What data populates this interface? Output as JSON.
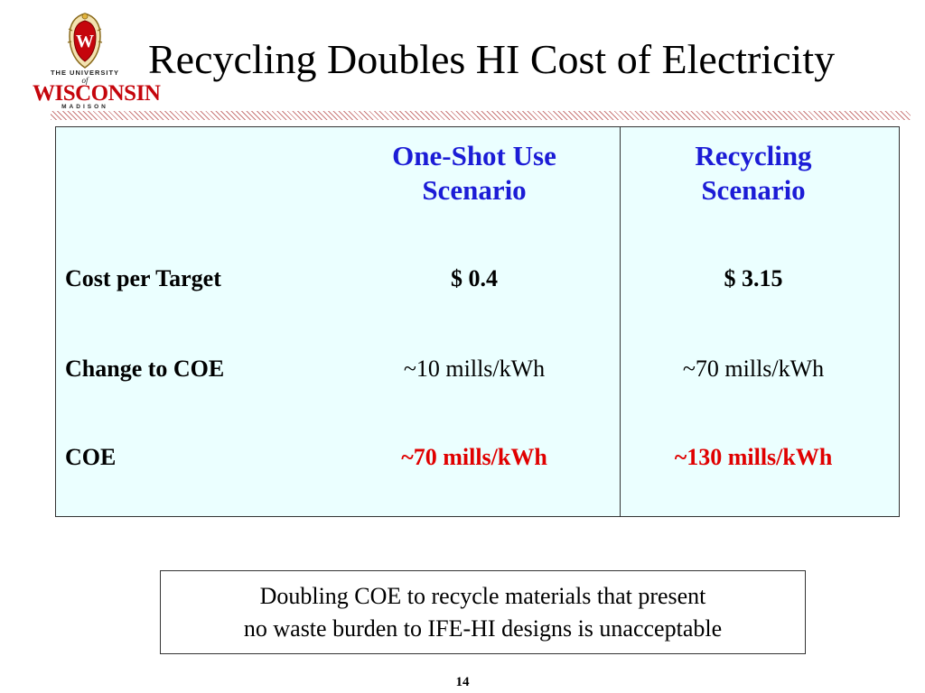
{
  "logo": {
    "line_top": "THE UNIVERSITY",
    "line_of": "of",
    "line_main": "WISCONSIN",
    "line_bottom": "MADISON",
    "crest_letter": "W",
    "crest_color": "#c5050c"
  },
  "title": "Recycling Doubles HI Cost of Electricity",
  "table": {
    "headers": [
      {
        "line1": "One-Shot Use",
        "line2": "Scenario"
      },
      {
        "line1": "Recycling",
        "line2": "Scenario"
      }
    ],
    "rows": [
      {
        "label": "Cost per Target",
        "values": [
          "$ 0.4",
          "$ 3.15"
        ]
      },
      {
        "label": "Change to COE",
        "values": [
          "~10 mills/kWh",
          "~70 mills/kWh"
        ]
      },
      {
        "label": "COE",
        "values": [
          "~70 mills/kWh",
          "~130 mills/kWh"
        ]
      }
    ],
    "colors": {
      "background": "#ebffff",
      "header_text": "#1c1cd6",
      "highlight_text": "#e00000"
    }
  },
  "note": {
    "line1": "Doubling COE to recycle materials that present",
    "line2": "no waste burden to IFE-HI designs is unacceptable"
  },
  "page_number": "14"
}
